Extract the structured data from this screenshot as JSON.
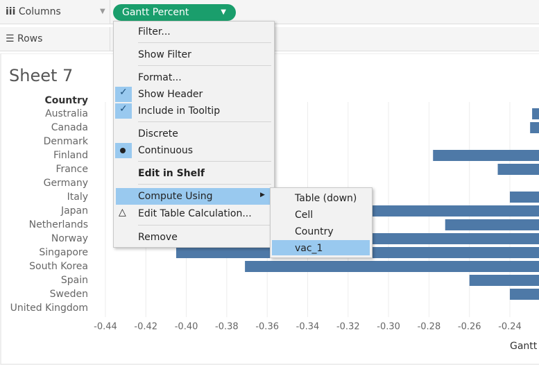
{
  "shelves": {
    "columns_label": "Columns",
    "columns_pill": "Gantt Percent",
    "rows_label": "Rows"
  },
  "sheet": {
    "title": "Sheet 7",
    "row_header": "Country"
  },
  "chart_data": {
    "type": "gantt",
    "categories": [
      "Australia",
      "Canada",
      "Denmark",
      "Finland",
      "France",
      "Germany",
      "Italy",
      "Japan",
      "Netherlands",
      "Norway",
      "Singapore",
      "South Korea",
      "Spain",
      "Sweden",
      "United Kingdom"
    ],
    "values": [
      -0.229,
      -0.23,
      null,
      -0.278,
      -0.246,
      null,
      -0.24,
      -0.39,
      -0.272,
      -0.38,
      -0.405,
      -0.371,
      -0.26,
      -0.24,
      null
    ],
    "color": "#4e79a7",
    "xlim": [
      -0.4465,
      -0.2256
    ],
    "xticks": [
      -0.44,
      -0.42,
      {
        "value": -0.4,
        "label": "-0.40"
      },
      -0.38,
      -0.36,
      -0.34,
      -0.32,
      {
        "value": -0.3,
        "label": "-0.30"
      },
      -0.28,
      -0.26,
      -0.24
    ],
    "x_label": "Gantt",
    "grid": true
  },
  "menu": {
    "items": [
      "Filter...",
      "Show Filter",
      "Format...",
      "Show Header",
      "Include in Tooltip",
      "Discrete",
      "Continuous",
      "Edit in Shelf",
      "Compute Using",
      "Edit Table Calculation...",
      "Remove"
    ],
    "submenu": [
      "Table (down)",
      "Cell",
      "Country",
      "vac_1"
    ]
  }
}
